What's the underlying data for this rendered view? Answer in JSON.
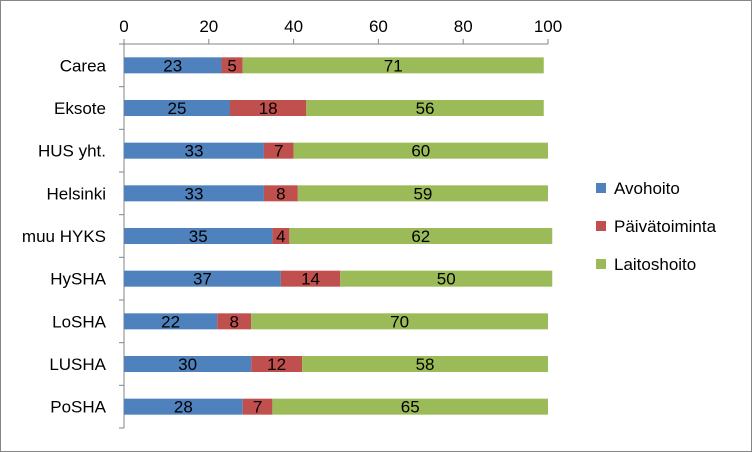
{
  "chart_data": {
    "type": "bar",
    "orientation": "horizontal",
    "stacked": true,
    "categories": [
      "Carea",
      "Eksote",
      "HUS yht.",
      "Helsinki",
      "muu HYKS",
      "HySHA",
      "LoSHA",
      "LUSHA",
      "PoSHA"
    ],
    "series": [
      {
        "name": "Avohoito",
        "color": "#4f81bd",
        "values": [
          23,
          25,
          33,
          33,
          35,
          37,
          22,
          30,
          28
        ]
      },
      {
        "name": "Päivätoiminta",
        "color": "#c0504d",
        "values": [
          5,
          18,
          7,
          8,
          4,
          14,
          8,
          12,
          7
        ]
      },
      {
        "name": "Laitoshoito",
        "color": "#9bbb59",
        "values": [
          71,
          56,
          60,
          59,
          62,
          50,
          70,
          58,
          65
        ]
      }
    ],
    "xlim": [
      0,
      100
    ],
    "xticks": [
      0,
      20,
      40,
      60,
      80,
      100
    ],
    "x_axis_position": "top",
    "grid": false,
    "legend": "right"
  }
}
